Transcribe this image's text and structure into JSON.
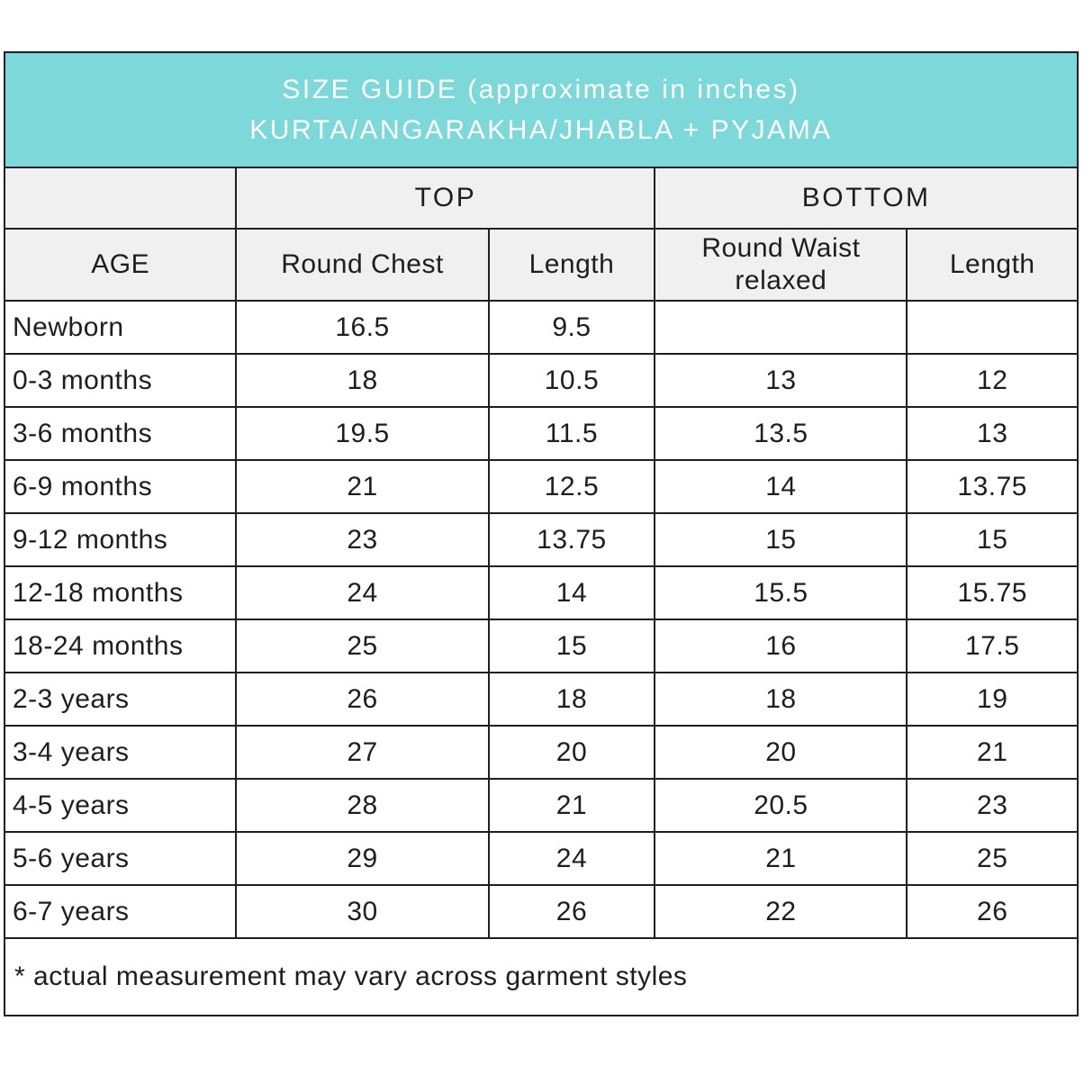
{
  "chart_data": {
    "type": "table",
    "title": "SIZE GUIDE (approximate in inches)",
    "subtitle": "KURTA/ANGARAKHA/JHABLA + PYJAMA",
    "column_groups": [
      {
        "label": "",
        "span": 1
      },
      {
        "label": "TOP",
        "span": 2
      },
      {
        "label": "BOTTOM",
        "span": 2
      }
    ],
    "columns": [
      "AGE",
      "Round Chest",
      "Length",
      "Round Waist relaxed",
      "Length"
    ],
    "rows": [
      [
        "Newborn",
        "16.5",
        "9.5",
        "",
        ""
      ],
      [
        "0-3 months",
        "18",
        "10.5",
        "13",
        "12"
      ],
      [
        "3-6 months",
        "19.5",
        "11.5",
        "13.5",
        "13"
      ],
      [
        "6-9 months",
        "21",
        "12.5",
        "14",
        "13.75"
      ],
      [
        "9-12 months",
        "23",
        "13.75",
        "15",
        "15"
      ],
      [
        "12-18 months",
        "24",
        "14",
        "15.5",
        "15.75"
      ],
      [
        "18-24 months",
        "25",
        "15",
        "16",
        "17.5"
      ],
      [
        "2-3 years",
        "26",
        "18",
        "18",
        "19"
      ],
      [
        "3-4 years",
        "27",
        "20",
        "20",
        "21"
      ],
      [
        "4-5 years",
        "28",
        "21",
        "20.5",
        "23"
      ],
      [
        "5-6 years",
        "29",
        "24",
        "21",
        "25"
      ],
      [
        "6-7 years",
        "30",
        "26",
        "22",
        "26"
      ]
    ],
    "footnote": "* actual measurement may vary across garment styles"
  },
  "colors": {
    "banner_bg": "#7cd8d9",
    "banner_text": "#ffffff",
    "header_bg": "#f0f0f0",
    "border": "#1e1e24",
    "text": "#1e1e1e",
    "row_bg": "#ffffff"
  }
}
